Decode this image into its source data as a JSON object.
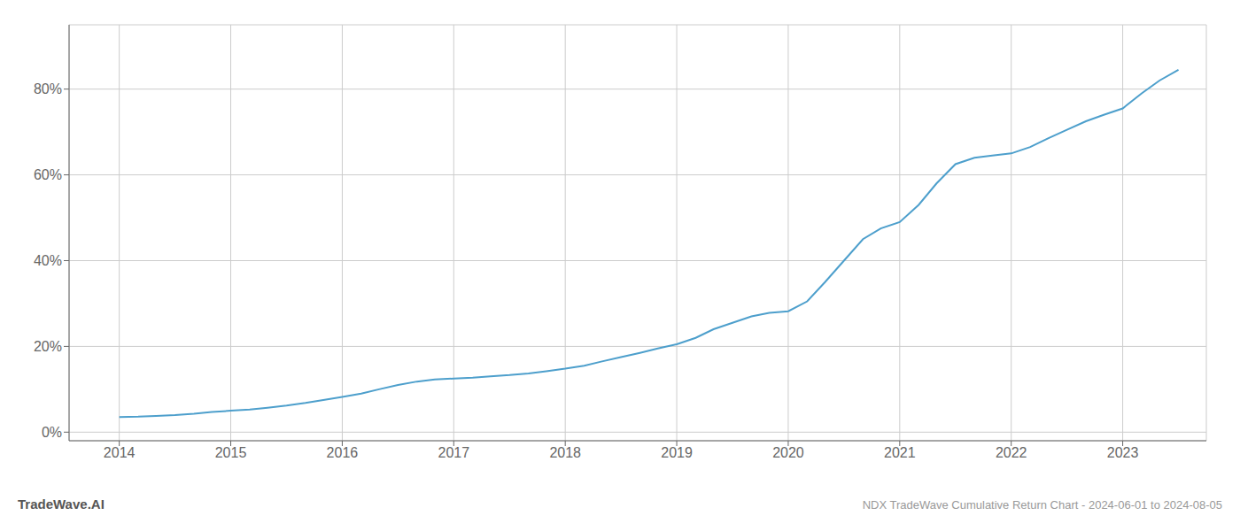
{
  "chart_data": {
    "type": "line",
    "title": "NDX TradeWave Cumulative Return Chart - 2024-06-01 to 2024-08-05",
    "annotations": [
      "TradeWave.AI"
    ],
    "x": [
      2014.0,
      2014.17,
      2014.33,
      2014.5,
      2014.67,
      2014.83,
      2015.0,
      2015.17,
      2015.33,
      2015.5,
      2015.67,
      2015.83,
      2016.0,
      2016.17,
      2016.33,
      2016.5,
      2016.67,
      2016.83,
      2017.0,
      2017.17,
      2017.33,
      2017.5,
      2017.67,
      2017.83,
      2018.0,
      2018.17,
      2018.33,
      2018.5,
      2018.67,
      2018.83,
      2019.0,
      2019.17,
      2019.33,
      2019.5,
      2019.67,
      2019.83,
      2020.0,
      2020.17,
      2020.33,
      2020.5,
      2020.67,
      2020.83,
      2021.0,
      2021.17,
      2021.33,
      2021.5,
      2021.67,
      2021.83,
      2022.0,
      2022.17,
      2022.33,
      2022.5,
      2022.67,
      2022.83,
      2023.0,
      2023.17,
      2023.33,
      2023.5
    ],
    "values": [
      3.5,
      3.6,
      3.8,
      4.0,
      4.3,
      4.7,
      5.0,
      5.3,
      5.7,
      6.2,
      6.8,
      7.5,
      8.2,
      9.0,
      10.0,
      11.0,
      11.8,
      12.3,
      12.5,
      12.7,
      13.0,
      13.3,
      13.7,
      14.2,
      14.8,
      15.5,
      16.5,
      17.5,
      18.5,
      19.5,
      20.5,
      22.0,
      24.0,
      25.5,
      27.0,
      27.8,
      28.2,
      30.5,
      35.0,
      40.0,
      45.0,
      47.5,
      49.0,
      53.0,
      58.0,
      62.5,
      64.0,
      64.5,
      65.0,
      66.5,
      68.5,
      70.5,
      72.5,
      74.0,
      75.5,
      79.0,
      82.0,
      84.5
    ],
    "color": "#4d9fcc",
    "xlim": [
      2013.55,
      2023.75
    ],
    "xticks": [
      2014,
      2015,
      2016,
      2017,
      2018,
      2019,
      2020,
      2021,
      2022,
      2023
    ],
    "ylim": [
      -2,
      95
    ],
    "yticks": [
      {
        "value": 0,
        "label": "0%"
      },
      {
        "value": 20,
        "label": "20%"
      },
      {
        "value": 40,
        "label": "40%"
      },
      {
        "value": 60,
        "label": "60%"
      },
      {
        "value": 80,
        "label": "80%"
      }
    ],
    "grid": true
  }
}
